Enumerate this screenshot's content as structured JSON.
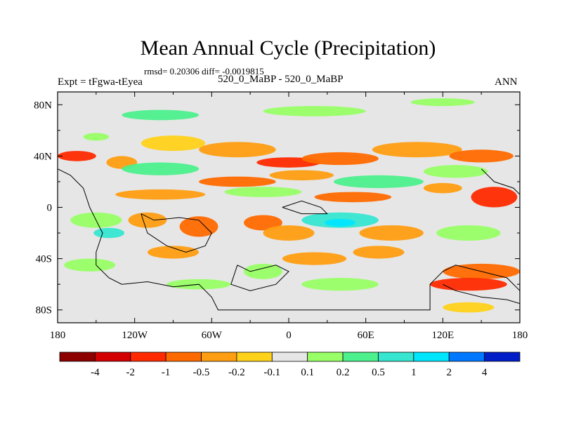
{
  "title": "Mean Annual Cycle (Precipitation)",
  "stats_line": "rmsd= 0.20306 diff= -0.0019815",
  "experiment_label": "Expt = tFgwa-tEyea",
  "subtitle": "520_0_MaBP - 520_0_MaBP",
  "season_label": "ANN",
  "chart_data": {
    "type": "heatmap",
    "title": "Mean Annual Cycle (Precipitation)",
    "x_axis": {
      "range": [
        -180,
        180
      ],
      "ticks": [
        -180,
        -120,
        -60,
        0,
        60,
        120,
        180
      ],
      "tick_labels": [
        "180",
        "120W",
        "60W",
        "0",
        "60E",
        "120E",
        "180"
      ]
    },
    "y_axis": {
      "range": [
        -90,
        90
      ],
      "ticks": [
        80,
        40,
        0,
        -40,
        -80
      ],
      "tick_labels": [
        "80N",
        "40N",
        "0",
        "40S",
        "80S"
      ]
    },
    "colorbar": {
      "levels": [
        -4,
        -2,
        -1,
        -0.5,
        -0.2,
        -0.1,
        0.1,
        0.2,
        0.5,
        1,
        2,
        4
      ],
      "level_labels": [
        "-4",
        "-2",
        "-1",
        "-0.5",
        "-0.2",
        "-0.1",
        "0.1",
        "0.2",
        "0.5",
        "1",
        "2",
        "4"
      ],
      "colors": [
        "#8c0000",
        "#d40000",
        "#ff2a00",
        "#ff6a00",
        "#ff9e12",
        "#ffd21a",
        "#e6e6e6",
        "#98ff66",
        "#4cf08c",
        "#36e6d0",
        "#00e6ff",
        "#0078ff",
        "#001ec8"
      ]
    },
    "background_color": "#e6e6e6",
    "features": [
      {
        "lon": -165,
        "lat": 40,
        "rx": 15,
        "ry": 4,
        "level": 2
      },
      {
        "lon": -130,
        "lat": 35,
        "rx": 12,
        "ry": 5,
        "level": 4
      },
      {
        "lon": -150,
        "lat": 55,
        "rx": 10,
        "ry": 3,
        "level": 7
      },
      {
        "lon": -90,
        "lat": 50,
        "rx": 25,
        "ry": 6,
        "level": 5
      },
      {
        "lon": -40,
        "lat": 45,
        "rx": 30,
        "ry": 6,
        "level": 4
      },
      {
        "lon": 0,
        "lat": 35,
        "rx": 25,
        "ry": 4,
        "level": 2
      },
      {
        "lon": 40,
        "lat": 38,
        "rx": 30,
        "ry": 5,
        "level": 3
      },
      {
        "lon": 100,
        "lat": 45,
        "rx": 35,
        "ry": 6,
        "level": 4
      },
      {
        "lon": 150,
        "lat": 40,
        "rx": 25,
        "ry": 5,
        "level": 3
      },
      {
        "lon": -100,
        "lat": 30,
        "rx": 30,
        "ry": 5,
        "level": 8
      },
      {
        "lon": -40,
        "lat": 20,
        "rx": 30,
        "ry": 4,
        "level": 3
      },
      {
        "lon": 10,
        "lat": 25,
        "rx": 25,
        "ry": 4,
        "level": 4
      },
      {
        "lon": 70,
        "lat": 20,
        "rx": 35,
        "ry": 5,
        "level": 8
      },
      {
        "lon": 130,
        "lat": 28,
        "rx": 25,
        "ry": 5,
        "level": 7
      },
      {
        "lon": -100,
        "lat": 10,
        "rx": 35,
        "ry": 4,
        "level": 4
      },
      {
        "lon": -20,
        "lat": 12,
        "rx": 30,
        "ry": 4,
        "level": 7
      },
      {
        "lon": 50,
        "lat": 8,
        "rx": 30,
        "ry": 4,
        "level": 3
      },
      {
        "lon": 160,
        "lat": 8,
        "rx": 18,
        "ry": 8,
        "level": 2
      },
      {
        "lon": 120,
        "lat": 15,
        "rx": 15,
        "ry": 4,
        "level": 4
      },
      {
        "lon": -150,
        "lat": -10,
        "rx": 20,
        "ry": 6,
        "level": 7
      },
      {
        "lon": -140,
        "lat": -20,
        "rx": 12,
        "ry": 4,
        "level": 9
      },
      {
        "lon": -110,
        "lat": -10,
        "rx": 15,
        "ry": 6,
        "level": 4
      },
      {
        "lon": -70,
        "lat": -15,
        "rx": 15,
        "ry": 8,
        "level": 3
      },
      {
        "lon": -20,
        "lat": -12,
        "rx": 15,
        "ry": 6,
        "level": 3
      },
      {
        "lon": 40,
        "lat": -10,
        "rx": 30,
        "ry": 6,
        "level": 9
      },
      {
        "lon": 40,
        "lat": -12,
        "rx": 12,
        "ry": 3,
        "level": 10
      },
      {
        "lon": 0,
        "lat": -20,
        "rx": 20,
        "ry": 6,
        "level": 4
      },
      {
        "lon": 80,
        "lat": -20,
        "rx": 25,
        "ry": 6,
        "level": 4
      },
      {
        "lon": 140,
        "lat": -20,
        "rx": 25,
        "ry": 6,
        "level": 7
      },
      {
        "lon": -155,
        "lat": -45,
        "rx": 20,
        "ry": 5,
        "level": 7
      },
      {
        "lon": -90,
        "lat": -35,
        "rx": 20,
        "ry": 5,
        "level": 4
      },
      {
        "lon": -20,
        "lat": -50,
        "rx": 15,
        "ry": 6,
        "level": 7
      },
      {
        "lon": 20,
        "lat": -40,
        "rx": 25,
        "ry": 5,
        "level": 4
      },
      {
        "lon": 70,
        "lat": -35,
        "rx": 20,
        "ry": 5,
        "level": 4
      },
      {
        "lon": 150,
        "lat": -50,
        "rx": 30,
        "ry": 6,
        "level": 3
      },
      {
        "lon": 140,
        "lat": -60,
        "rx": 30,
        "ry": 5,
        "level": 2
      },
      {
        "lon": 40,
        "lat": -60,
        "rx": 30,
        "ry": 5,
        "level": 7
      },
      {
        "lon": -70,
        "lat": -60,
        "rx": 25,
        "ry": 4,
        "level": 7
      },
      {
        "lon": 140,
        "lat": -78,
        "rx": 20,
        "ry": 4,
        "level": 5
      },
      {
        "lon": -100,
        "lat": 72,
        "rx": 30,
        "ry": 4,
        "level": 8
      },
      {
        "lon": 20,
        "lat": 75,
        "rx": 40,
        "ry": 4,
        "level": 7
      },
      {
        "lon": 120,
        "lat": 82,
        "rx": 25,
        "ry": 3,
        "level": 7
      }
    ],
    "continent_outlines": [
      [
        [
          -180,
          30
        ],
        [
          -170,
          25
        ],
        [
          -160,
          15
        ],
        [
          -155,
          0
        ],
        [
          -150,
          -10
        ],
        [
          -145,
          -20
        ],
        [
          -150,
          -35
        ],
        [
          -150,
          -45
        ],
        [
          -140,
          -55
        ],
        [
          -130,
          -60
        ],
        [
          -110,
          -58
        ],
        [
          -90,
          -62
        ],
        [
          -70,
          -60
        ],
        [
          -60,
          -70
        ],
        [
          -55,
          -80
        ],
        [
          -20,
          -80
        ],
        [
          20,
          -80
        ],
        [
          60,
          -80
        ],
        [
          100,
          -80
        ],
        [
          110,
          -80
        ],
        [
          110,
          -60
        ],
        [
          120,
          -50
        ],
        [
          130,
          -45
        ],
        [
          150,
          -50
        ],
        [
          170,
          -55
        ],
        [
          180,
          -65
        ]
      ],
      [
        [
          -115,
          -5
        ],
        [
          -105,
          -10
        ],
        [
          -85,
          -8
        ],
        [
          -70,
          -10
        ],
        [
          -60,
          -20
        ],
        [
          -65,
          -30
        ],
        [
          -80,
          -35
        ],
        [
          -95,
          -30
        ],
        [
          -110,
          -20
        ],
        [
          -115,
          -5
        ]
      ],
      [
        [
          -40,
          -45
        ],
        [
          -30,
          -50
        ],
        [
          -10,
          -45
        ],
        [
          0,
          -50
        ],
        [
          -10,
          -60
        ],
        [
          -30,
          -65
        ],
        [
          -45,
          -60
        ],
        [
          -40,
          -45
        ]
      ],
      [
        [
          -5,
          0
        ],
        [
          10,
          5
        ],
        [
          25,
          0
        ],
        [
          30,
          -5
        ],
        [
          10,
          -5
        ],
        [
          -5,
          0
        ]
      ],
      [
        [
          150,
          30
        ],
        [
          160,
          20
        ],
        [
          175,
          15
        ],
        [
          180,
          10
        ],
        [
          180,
          30
        ]
      ],
      [
        [
          120,
          -60
        ],
        [
          130,
          -65
        ],
        [
          150,
          -70
        ],
        [
          170,
          -72
        ],
        [
          180,
          -75
        ]
      ]
    ]
  }
}
